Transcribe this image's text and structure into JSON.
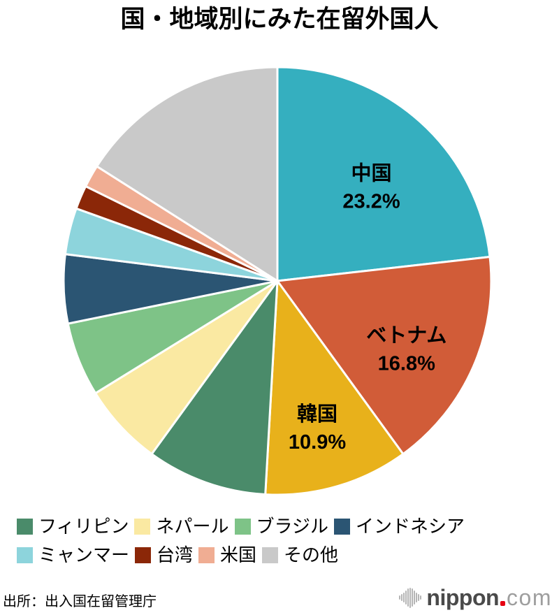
{
  "chart_data": {
    "type": "pie",
    "title": "国・地域別にみた在留外国人",
    "start_angle_deg": 0,
    "direction": "clockwise",
    "legend_position": "bottom",
    "slices": [
      {
        "label": "中国",
        "value": 23.2,
        "pct_label": "23.2%",
        "color": "#35AFBF",
        "label_visible": true
      },
      {
        "label": "ベトナム",
        "value": 16.8,
        "pct_label": "16.8%",
        "color": "#D15C38",
        "label_visible": true
      },
      {
        "label": "韓国",
        "value": 10.9,
        "pct_label": "10.9%",
        "color": "#E8B11B",
        "label_visible": true
      },
      {
        "label": "フィリピン",
        "value": 9.1,
        "pct_label": "9.1%",
        "color": "#4A8B6A",
        "label_visible": false
      },
      {
        "label": "ネパール",
        "value": 6.2,
        "pct_label": "6.2%",
        "color": "#FAE9A2",
        "label_visible": false
      },
      {
        "label": "ブラジル",
        "value": 5.6,
        "pct_label": "5.6%",
        "color": "#7EC387",
        "label_visible": false
      },
      {
        "label": "インドネシア",
        "value": 5.2,
        "pct_label": "5.2%",
        "color": "#2B5573",
        "label_visible": false
      },
      {
        "label": "ミャンマー",
        "value": 3.5,
        "pct_label": "3.5%",
        "color": "#8DD4DC",
        "label_visible": false
      },
      {
        "label": "台湾",
        "value": 1.8,
        "pct_label": "1.8%",
        "color": "#8B2708",
        "label_visible": false
      },
      {
        "label": "米国",
        "value": 1.7,
        "pct_label": "1.7%",
        "color": "#F0AD93",
        "label_visible": false
      },
      {
        "label": "その他",
        "value": 16.0,
        "pct_label": "16.0%",
        "color": "#C9C9C9",
        "label_visible": false
      }
    ],
    "legend": {
      "rows": [
        [
          "フィリピン",
          "ネパール",
          "ブラジル",
          "インドネシア"
        ],
        [
          "ミャンマー",
          "台湾",
          "米国",
          "その他"
        ]
      ]
    }
  },
  "footer": {
    "source": "出所：出入国在留管理庁",
    "logo": {
      "brand": "nippon.com",
      "icon": "audio-wave-icon",
      "text_bold": "nippon",
      "dot": ".",
      "text_light": "com",
      "dot_color": "#e60012"
    }
  }
}
